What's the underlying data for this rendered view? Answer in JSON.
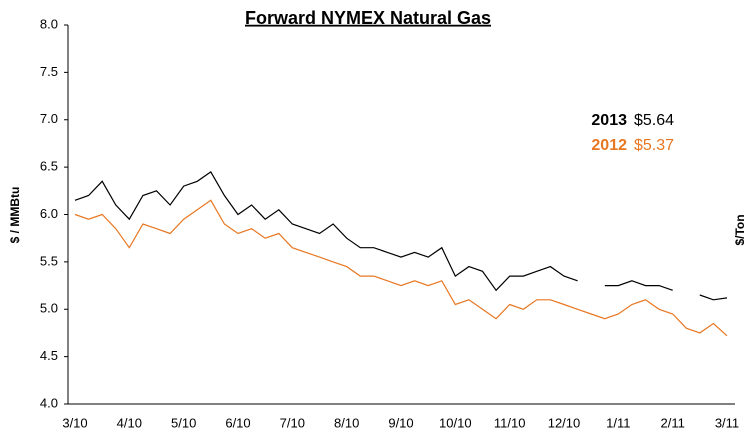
{
  "chart_data": {
    "type": "line",
    "title": "Forward NYMEX Natural Gas",
    "y_label": "$ / MMBtu",
    "y2_label": "$/Ton",
    "categories": [
      "3/10",
      null,
      null,
      null,
      "4/10",
      null,
      null,
      null,
      "5/10",
      null,
      null,
      null,
      "6/10",
      null,
      null,
      null,
      "7/10",
      null,
      null,
      null,
      "8/10",
      null,
      null,
      null,
      "9/10",
      null,
      null,
      null,
      "10/10",
      null,
      null,
      null,
      "11/10",
      null,
      null,
      null,
      "12/10",
      null,
      null,
      null,
      "1/11",
      null,
      null,
      null,
      "2/11",
      null,
      null,
      null,
      "3/11"
    ],
    "series": [
      {
        "name": "2013",
        "color": "#000000",
        "values": [
          6.15,
          6.2,
          6.35,
          6.1,
          5.95,
          6.2,
          6.25,
          6.1,
          6.3,
          6.35,
          6.45,
          6.2,
          6.0,
          6.1,
          5.95,
          6.05,
          5.9,
          5.85,
          5.8,
          5.9,
          5.75,
          5.65,
          5.65,
          5.6,
          5.55,
          5.6,
          5.55,
          5.65,
          5.35,
          5.45,
          5.4,
          5.2,
          5.35,
          5.35,
          5.4,
          5.45,
          5.35,
          5.3,
          null,
          5.25,
          5.25,
          5.3,
          5.25,
          5.25,
          5.2,
          null,
          5.15,
          5.1,
          5.12
        ]
      },
      {
        "name": "2012",
        "color": "#e87722",
        "values": [
          6.0,
          5.95,
          6.0,
          5.85,
          5.65,
          5.9,
          5.85,
          5.8,
          5.95,
          6.05,
          6.15,
          5.9,
          5.8,
          5.85,
          5.75,
          5.8,
          5.65,
          5.6,
          5.55,
          5.5,
          5.45,
          5.35,
          5.35,
          5.3,
          5.25,
          5.3,
          5.25,
          5.3,
          5.05,
          5.1,
          5.0,
          4.9,
          5.05,
          5.0,
          5.1,
          5.1,
          5.05,
          5.0,
          4.95,
          4.9,
          4.95,
          5.05,
          5.1,
          5.0,
          4.95,
          4.8,
          4.75,
          4.85,
          4.72
        ]
      }
    ],
    "annotations": [
      {
        "label": "2013",
        "value": "$5.64",
        "color": "#000000"
      },
      {
        "label": "2012",
        "value": "$5.37",
        "color": "#e87722"
      }
    ],
    "ylim": [
      4.0,
      8.0
    ],
    "yticks": [
      {
        "value": 4,
        "label": "4.0"
      },
      4.5,
      {
        "value": 5,
        "label": "5.0"
      },
      5.5,
      {
        "value": 6,
        "label": "6.0"
      },
      6.5,
      {
        "value": 7,
        "label": "7.0"
      },
      7.5,
      {
        "value": 8,
        "label": "8.0"
      }
    ],
    "grid": false
  }
}
